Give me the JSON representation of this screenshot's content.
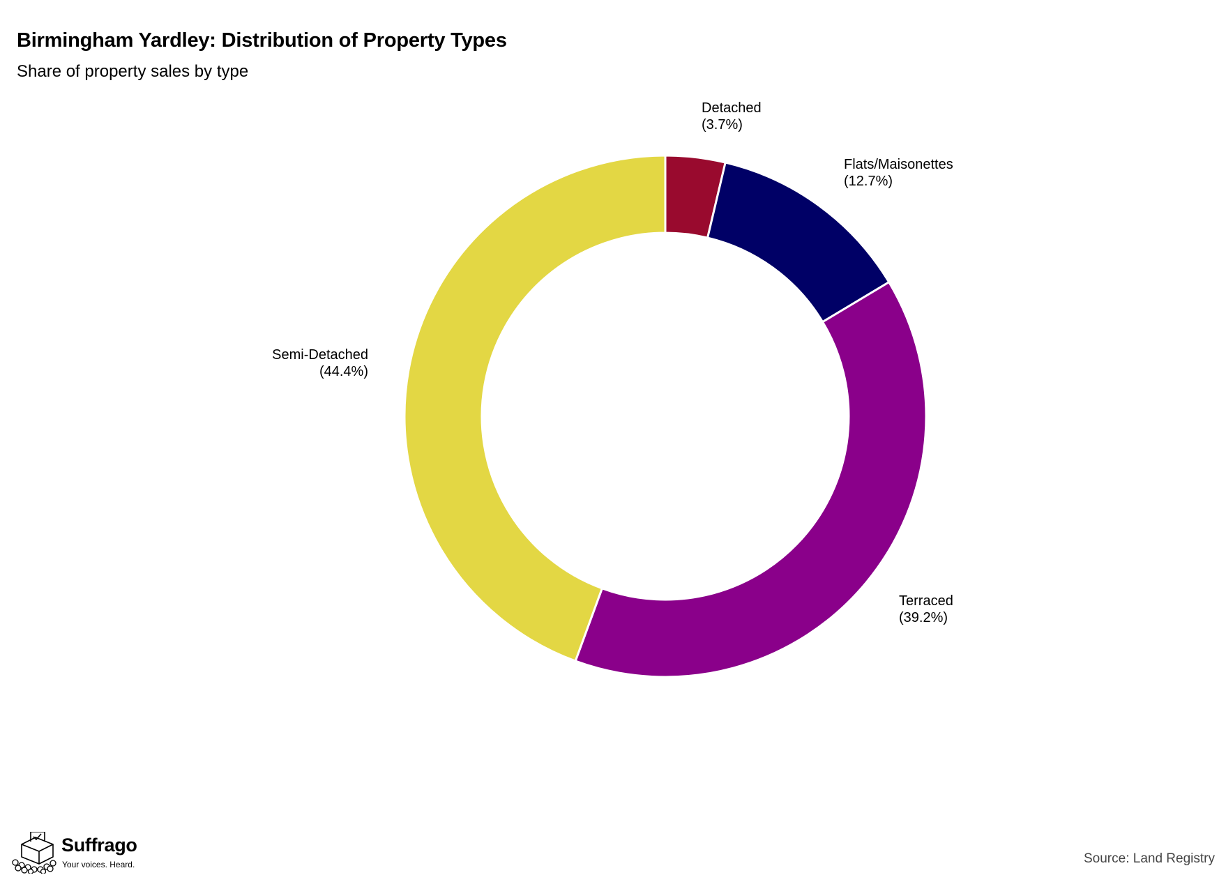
{
  "header": {
    "title": "Birmingham Yardley: Distribution of Property Types",
    "subtitle": "Share of property sales by type"
  },
  "chart_data": {
    "type": "pie",
    "style": "donut",
    "title": "Birmingham Yardley: Distribution of Property Types",
    "subtitle": "Share of property sales by type",
    "categories": [
      "Detached",
      "Flats/Maisonettes",
      "Terraced",
      "Semi-Detached"
    ],
    "values": [
      3.7,
      12.7,
      39.2,
      44.4
    ],
    "value_labels": [
      "(3.7%)",
      "(12.7%)",
      "(39.2%)",
      "(44.4%)"
    ],
    "colors": [
      "#990a2e",
      "#000066",
      "#8a008a",
      "#e3d744"
    ],
    "unit": "%",
    "start_angle": "12 o'clock",
    "direction": "clockwise",
    "legend": "none"
  },
  "footer": {
    "brand_name": "Suffrago",
    "brand_tagline": "Your voices. Heard.",
    "source": "Source: Land Registry"
  }
}
